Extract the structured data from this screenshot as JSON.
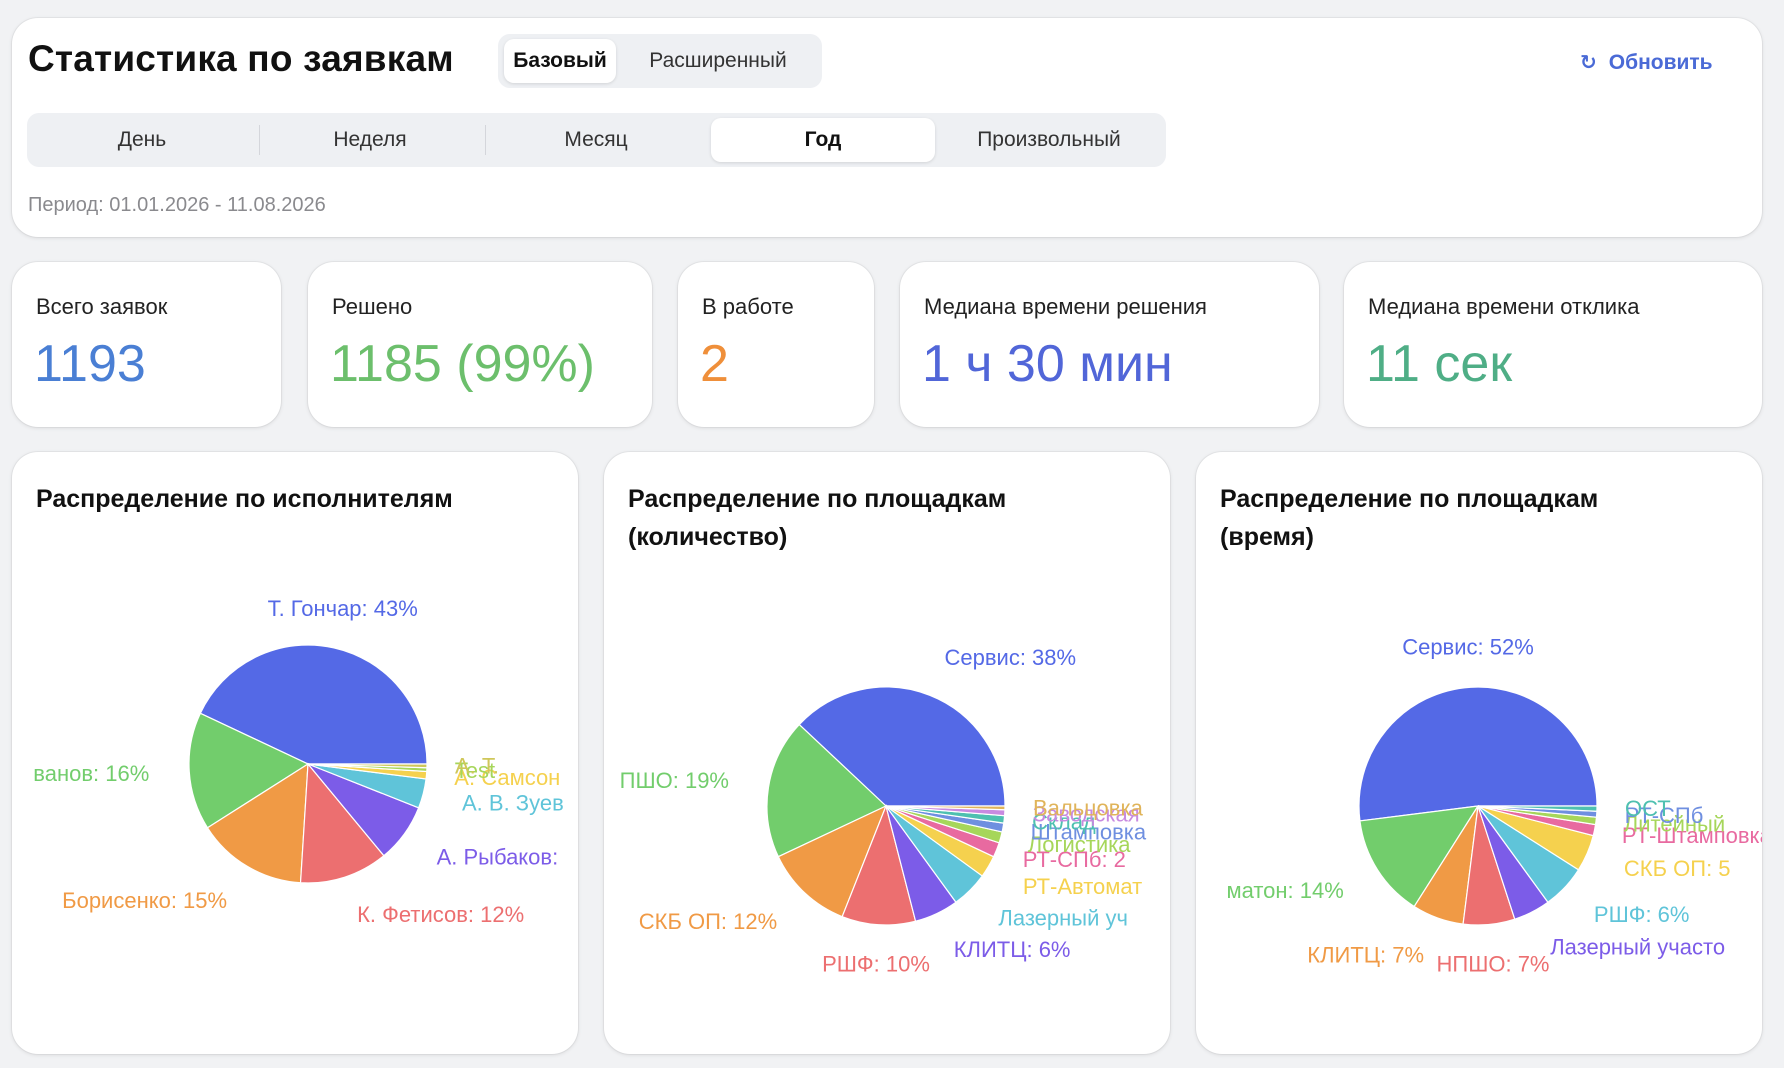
{
  "header": {
    "title": "Статистика по заявкам",
    "modes": [
      {
        "label": "Базовый",
        "active": true
      },
      {
        "label": "Расширенный",
        "active": false
      }
    ],
    "refresh_label": "Обновить",
    "refresh_icon": "refresh-icon",
    "period_tabs": [
      {
        "label": "День",
        "active": false
      },
      {
        "label": "Неделя",
        "active": false
      },
      {
        "label": "Месяц",
        "active": false
      },
      {
        "label": "Год",
        "active": true
      },
      {
        "label": "Произвольный",
        "active": false
      }
    ],
    "period_text": "Период: 01.01.2026 - 11.08.2026"
  },
  "stats": [
    {
      "label": "Всего заявок",
      "value": "1193",
      "color": "#4a7fd4"
    },
    {
      "label": "Решено",
      "value": "1185 (99%)",
      "color": "#6cbf6c"
    },
    {
      "label": "В работе",
      "value": "2",
      "color": "#ef8f3a"
    },
    {
      "label": "Медиана времени решения",
      "value": "1 ч 30 мин",
      "color": "#5166d8"
    },
    {
      "label": "Медиана времени отклика",
      "value": "11 сек",
      "color": "#4fae86"
    }
  ],
  "chart_data": [
    {
      "type": "pie",
      "title": "Распределение по исполнителям",
      "slices": [
        {
          "label": "Т. Гончар: 43%",
          "value": 43,
          "color": "#5469e6"
        },
        {
          "label": "ванов: 16%",
          "value": 16,
          "color": "#72cd6c"
        },
        {
          "label": "Борисенко: 15%",
          "value": 15,
          "color": "#f09a45"
        },
        {
          "label": "К. Фетисов: 12%",
          "value": 12,
          "color": "#ec6f70"
        },
        {
          "label": "А. Рыбаков:",
          "value": 8,
          "color": "#7c5ce8"
        },
        {
          "label": "А. В. Зуев",
          "value": 4,
          "color": "#5fc4d9"
        },
        {
          "label": "А. Самсон",
          "value": 1,
          "color": "#f5d14e"
        },
        {
          "label": "Test",
          "value": 0.5,
          "color": "#a6d65a"
        },
        {
          "label": "А. Т.",
          "value": 0.5,
          "color": "#cfc75a"
        }
      ]
    },
    {
      "type": "pie",
      "title": "Распределение по площадкам (количество)",
      "slices": [
        {
          "label": "Сервис: 38%",
          "value": 38,
          "color": "#5469e6"
        },
        {
          "label": "ПШО: 19%",
          "value": 19,
          "color": "#72cd6c"
        },
        {
          "label": "СКБ ОП: 12%",
          "value": 12,
          "color": "#f09a45"
        },
        {
          "label": "РШФ: 10%",
          "value": 10,
          "color": "#ec6f70"
        },
        {
          "label": "КЛИТЦ: 6%",
          "value": 6,
          "color": "#7c5ce8"
        },
        {
          "label": "Лазерный уч",
          "value": 5,
          "color": "#5fc4d9"
        },
        {
          "label": "РТ-Автомат",
          "value": 3,
          "color": "#f5d14e"
        },
        {
          "label": "РТ-СПб: 2",
          "value": 2,
          "color": "#e86aa0"
        },
        {
          "label": "Логистика",
          "value": 1.5,
          "color": "#a6d65a"
        },
        {
          "label": "Штамповка",
          "value": 1.2,
          "color": "#6f8fe0"
        },
        {
          "label": "Склад",
          "value": 1,
          "color": "#4ec0b0"
        },
        {
          "label": "Заводская",
          "value": 0.8,
          "color": "#c88ae0"
        },
        {
          "label": "Вальцовка",
          "value": 0.5,
          "color": "#e0b45a"
        }
      ]
    },
    {
      "type": "pie",
      "title": "Распределение по площадкам (время)",
      "slices": [
        {
          "label": "Сервис: 52%",
          "value": 52,
          "color": "#5469e6"
        },
        {
          "label": "матон: 14%",
          "value": 14,
          "color": "#72cd6c"
        },
        {
          "label": "КЛИТЦ: 7%",
          "value": 7,
          "color": "#f09a45"
        },
        {
          "label": "НПШО: 7%",
          "value": 7,
          "color": "#ec6f70"
        },
        {
          "label": "Лазерный участо",
          "value": 5,
          "color": "#7c5ce8"
        },
        {
          "label": "РШФ: 6%",
          "value": 6,
          "color": "#5fc4d9"
        },
        {
          "label": "СКБ ОП: 5",
          "value": 5,
          "color": "#f5d14e"
        },
        {
          "label": "РТ-Штамповка",
          "value": 1.5,
          "color": "#e86aa0"
        },
        {
          "label": "Литейный",
          "value": 1,
          "color": "#a6d65a"
        },
        {
          "label": "РТ-СПб",
          "value": 0.8,
          "color": "#6f8fe0"
        },
        {
          "label": "ОСТ",
          "value": 0.7,
          "color": "#4ec0b0"
        }
      ]
    }
  ]
}
